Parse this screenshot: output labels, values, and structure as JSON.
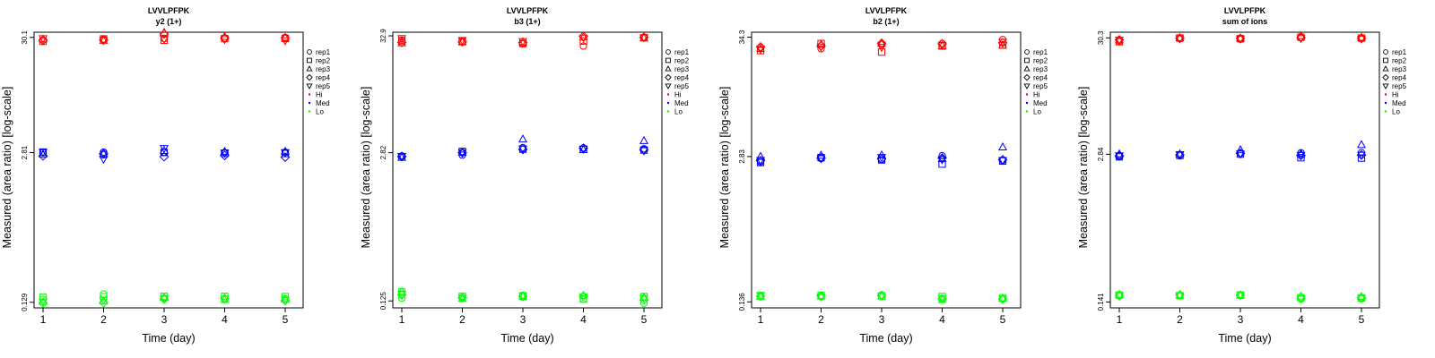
{
  "chart_data": [
    {
      "type": "scatter",
      "title": "LVVLPFPK",
      "subtitle": "y2 (1+)",
      "xlabel": "Time (day)",
      "ylabel": "Measured (area ratio) [log-scale]",
      "x_ticks": [
        "1",
        "2",
        "3",
        "4",
        "5"
      ],
      "y_ticks": [
        {
          "label": "0.129",
          "value": 0.129
        },
        {
          "label": "2.81",
          "value": 2.81
        },
        {
          "label": "30.1",
          "value": 30.1
        }
      ],
      "ylim": [
        0.115,
        33.5
      ],
      "series": [
        {
          "name": "Hi",
          "color": "#ff0000",
          "values": [
            [
              28.5,
              27.8,
              29.0,
              28.3,
              29.5
            ],
            [
              29.0,
              29.2,
              28.2,
              28.6,
              28.3
            ],
            [
              29.3,
              28.4,
              33.3,
              32.3,
              29.1
            ],
            [
              29.6,
              29.4,
              30.6,
              29.7,
              28.9
            ],
            [
              30.1,
              29.5,
              30.0,
              29.8,
              28.2
            ]
          ]
        },
        {
          "name": "Med",
          "color": "#0000ff",
          "values": [
            [
              2.81,
              2.84,
              2.72,
              2.63,
              2.85
            ],
            [
              2.84,
              2.7,
              2.74,
              2.74,
              2.46
            ],
            [
              2.83,
              2.82,
              2.93,
              2.58,
              3.07
            ],
            [
              2.82,
              2.77,
              2.87,
              2.65,
              2.8
            ],
            [
              2.83,
              2.76,
              2.87,
              2.56,
              2.82
            ]
          ]
        },
        {
          "name": "Lo",
          "color": "#00ff00",
          "values": [
            [
              0.137,
              0.143,
              0.131,
              0.127,
              0.13
            ],
            [
              0.153,
              0.145,
              0.132,
              0.128,
              0.135
            ],
            [
              0.141,
              0.146,
              0.142,
              0.138,
              0.138
            ],
            [
              0.138,
              0.146,
              0.136,
              0.14,
              0.138
            ],
            [
              0.139,
              0.145,
              0.137,
              0.134,
              0.134
            ]
          ]
        }
      ],
      "legend": [
        {
          "label": "rep1",
          "marker": "circle"
        },
        {
          "label": "rep2",
          "marker": "square"
        },
        {
          "label": "rep3",
          "marker": "triangle-up"
        },
        {
          "label": "rep4",
          "marker": "diamond"
        },
        {
          "label": "rep5",
          "marker": "triangle-down"
        },
        {
          "label": "Hi",
          "marker": "dot",
          "color": "#ff0000"
        },
        {
          "label": "Med",
          "marker": "dot",
          "color": "#0000ff"
        },
        {
          "label": "Lo",
          "marker": "dot",
          "color": "#00ff00"
        }
      ]
    },
    {
      "type": "scatter",
      "title": "LVVLPFPK",
      "subtitle": "b3 (1+)",
      "xlabel": "Time (day)",
      "ylabel": "Measured (area ratio) [log-scale]",
      "x_ticks": [
        "1",
        "2",
        "3",
        "4",
        "5"
      ],
      "y_ticks": [
        {
          "label": "0.125",
          "value": 0.125
        },
        {
          "label": "2.82",
          "value": 2.82
        },
        {
          "label": "32.9",
          "value": 32.9
        }
      ],
      "ylim": [
        0.108,
        35.5
      ],
      "series": [
        {
          "name": "Hi",
          "color": "#ff0000",
          "values": [
            [
              30.1,
              29.6,
              28.3,
              28.7,
              31.2
            ],
            [
              29.3,
              29.1,
              28.9,
              29.0,
              30.0
            ],
            [
              27.8,
              28.0,
              28.9,
              28.5,
              29.3
            ],
            [
              26.5,
              29.5,
              32.0,
              32.7,
              31.5
            ],
            [
              31.9,
              31.6,
              31.4,
              31.9,
              31.7
            ]
          ]
        },
        {
          "name": "Med",
          "color": "#0000ff",
          "values": [
            [
              2.63,
              2.57,
              2.55,
              2.6,
              2.62
            ],
            [
              2.68,
              2.9,
              2.83,
              2.82,
              2.83
            ],
            [
              3.14,
              3.04,
              3.74,
              3.02,
              3.06
            ],
            [
              3.12,
              3.03,
              3.0,
              3.1,
              3.05
            ],
            [
              3.06,
              2.98,
              3.62,
              2.99,
              2.95
            ]
          ]
        },
        {
          "name": "Lo",
          "color": "#00ff00",
          "values": [
            [
              0.132,
              0.151,
              0.152,
              0.142,
              0.144
            ],
            [
              0.132,
              0.138,
              0.131,
              0.134,
              0.134
            ],
            [
              0.141,
              0.138,
              0.138,
              0.137,
              0.14
            ],
            [
              0.13,
              0.13,
              0.14,
              0.138,
              0.137
            ],
            [
              0.119,
              0.137,
              0.135,
              0.128,
              0.133
            ]
          ]
        }
      ],
      "legend": [
        {
          "label": "rep1",
          "marker": "circle"
        },
        {
          "label": "rep2",
          "marker": "square"
        },
        {
          "label": "rep3",
          "marker": "triangle-up"
        },
        {
          "label": "rep4",
          "marker": "diamond"
        },
        {
          "label": "rep5",
          "marker": "triangle-down"
        },
        {
          "label": "Hi",
          "marker": "dot",
          "color": "#ff0000"
        },
        {
          "label": "Med",
          "marker": "dot",
          "color": "#0000ff"
        },
        {
          "label": "Lo",
          "marker": "dot",
          "color": "#00ff00"
        }
      ]
    },
    {
      "type": "scatter",
      "title": "LVVLPFPK",
      "subtitle": "b2 (1+)",
      "xlabel": "Time (day)",
      "ylabel": "Measured (area ratio) [log-scale]",
      "x_ticks": [
        "1",
        "2",
        "3",
        "4",
        "5"
      ],
      "y_ticks": [
        {
          "label": "0.136",
          "value": 0.136
        },
        {
          "label": "2.83",
          "value": 2.83
        },
        {
          "label": "34.3",
          "value": 34.3
        }
      ],
      "ylim": [
        0.12,
        38.0
      ],
      "series": [
        {
          "name": "Hi",
          "color": "#ff0000",
          "values": [
            [
              27.6,
              25.9,
              26.9,
              28.0,
              26.6
            ],
            [
              26.9,
              30.0,
              29.4,
              28.5,
              28.0
            ],
            [
              29.5,
              25.1,
              29.9,
              30.2,
              27.8
            ],
            [
              30.1,
              28.5,
              28.7,
              29.8,
              29.0
            ],
            [
              32.6,
              29.1,
              28.9,
              30.5,
              31.0
            ]
          ]
        },
        {
          "name": "Med",
          "color": "#0000ff",
          "values": [
            [
              2.53,
              2.5,
              2.83,
              2.6,
              2.62
            ],
            [
              2.71,
              2.77,
              2.9,
              2.75,
              2.72
            ],
            [
              2.64,
              2.64,
              2.91,
              2.7,
              2.79
            ],
            [
              2.88,
              2.42,
              2.7,
              2.75,
              2.66
            ],
            [
              2.61,
              2.58,
              3.44,
              2.65,
              2.62
            ]
          ]
        },
        {
          "name": "Lo",
          "color": "#00ff00",
          "values": [
            [
              0.154,
              0.155,
              0.152,
              0.153,
              0.156
            ],
            [
              0.152,
              0.156,
              0.153,
              0.155,
              0.151
            ],
            [
              0.157,
              0.154,
              0.153,
              0.156,
              0.154
            ],
            [
              0.144,
              0.152,
              0.142,
              0.145,
              0.147
            ],
            [
              0.145,
              0.148,
              0.146,
              0.144,
              0.145
            ]
          ]
        }
      ],
      "legend": [
        {
          "label": "rep1",
          "marker": "circle"
        },
        {
          "label": "rep2",
          "marker": "square"
        },
        {
          "label": "rep3",
          "marker": "triangle-up"
        },
        {
          "label": "rep4",
          "marker": "diamond"
        },
        {
          "label": "rep5",
          "marker": "triangle-down"
        },
        {
          "label": "Hi",
          "marker": "dot",
          "color": "#ff0000"
        },
        {
          "label": "Med",
          "marker": "dot",
          "color": "#0000ff"
        },
        {
          "label": "Lo",
          "marker": "dot",
          "color": "#00ff00"
        }
      ]
    },
    {
      "type": "scatter",
      "title": "LVVLPFPK",
      "subtitle": "sum of ions",
      "xlabel": "Time (day)",
      "ylabel": "Measured (area ratio) [log-scale]",
      "x_ticks": [
        "1",
        "2",
        "3",
        "4",
        "5"
      ],
      "y_ticks": [
        {
          "label": "0.141",
          "value": 0.141
        },
        {
          "label": "2.84",
          "value": 2.84
        },
        {
          "label": "30.3",
          "value": 30.3
        }
      ],
      "ylim": [
        0.125,
        34.0
      ],
      "series": [
        {
          "name": "Hi",
          "color": "#ff0000",
          "values": [
            [
              28.3,
              28.0,
              29.0,
              29.1,
              29.0
            ],
            [
              29.9,
              30.2,
              30.3,
              30.1,
              29.8
            ],
            [
              29.5,
              29.8,
              30.1,
              30.0,
              29.7
            ],
            [
              30.4,
              30.7,
              31.6,
              30.5,
              30.0
            ],
            [
              29.9,
              30.2,
              30.5,
              30.1,
              29.7
            ]
          ]
        },
        {
          "name": "Med",
          "color": "#0000ff",
          "values": [
            [
              2.72,
              2.7,
              2.85,
              2.75,
              2.77
            ],
            [
              2.81,
              2.77,
              2.85,
              2.8,
              2.83
            ],
            [
              2.88,
              2.85,
              3.1,
              2.9,
              2.87
            ],
            [
              2.93,
              2.65,
              2.87,
              2.78,
              2.79
            ],
            [
              2.94,
              2.63,
              3.44,
              2.8,
              2.8
            ]
          ]
        },
        {
          "name": "Lo",
          "color": "#00ff00",
          "values": [
            [
              0.16,
              0.162,
              0.164,
              0.16,
              0.161
            ],
            [
              0.161,
              0.16,
              0.162,
              0.163,
              0.161
            ],
            [
              0.163,
              0.162,
              0.161,
              0.162,
              0.163
            ],
            [
              0.15,
              0.154,
              0.158,
              0.152,
              0.151
            ],
            [
              0.151,
              0.153,
              0.157,
              0.153,
              0.152
            ]
          ]
        }
      ],
      "legend": [
        {
          "label": "rep1",
          "marker": "circle"
        },
        {
          "label": "rep2",
          "marker": "square"
        },
        {
          "label": "rep3",
          "marker": "triangle-up"
        },
        {
          "label": "rep4",
          "marker": "diamond"
        },
        {
          "label": "rep5",
          "marker": "triangle-down"
        },
        {
          "label": "Hi",
          "marker": "dot",
          "color": "#ff0000"
        },
        {
          "label": "Med",
          "marker": "dot",
          "color": "#0000ff"
        },
        {
          "label": "Lo",
          "marker": "dot",
          "color": "#00ff00"
        }
      ]
    }
  ]
}
